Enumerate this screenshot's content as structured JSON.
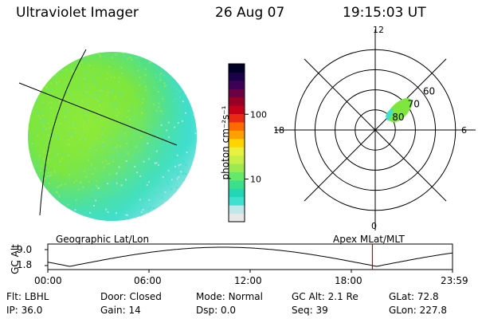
{
  "header": {
    "instrument": "Ultraviolet Imager",
    "date": "26 Aug 07",
    "time": "19:15:03 UT"
  },
  "colorbar": {
    "unit_label": "photon cm⁻²s⁻¹",
    "ticks": [
      {
        "label": "100",
        "value": 100
      },
      {
        "label": "10",
        "value": 10
      }
    ],
    "colors": [
      "#e8e8e8",
      "#bfe8ea",
      "#40e0d0",
      "#22d6b6",
      "#3ce08a",
      "#66e86a",
      "#9ee850",
      "#c8ee48",
      "#e8f040",
      "#ffd400",
      "#ffa000",
      "#ff6a00",
      "#e82a14",
      "#c40018",
      "#980028",
      "#6a0046",
      "#3c0054",
      "#1c0048",
      "#000028"
    ]
  },
  "polar": {
    "mlt_labels": [
      {
        "label": "12",
        "angle": 90
      },
      {
        "label": "6",
        "angle": 0
      },
      {
        "label": "18",
        "angle": 180
      },
      {
        "label": "0",
        "angle": 270
      }
    ],
    "lat_labels": [
      {
        "label": "60",
        "lat": 60
      },
      {
        "label": "70",
        "lat": 70
      },
      {
        "label": "80",
        "lat": 80
      }
    ]
  },
  "orbit": {
    "left_title": "Geographic Lat/Lon",
    "right_title": "Apex MLat/MLT",
    "axis_label": "GC Alt",
    "y_ticks": [
      "9.0",
      "1.8"
    ],
    "x_ticks": [
      "00:00",
      "06:00",
      "12:00",
      "18:00",
      "23:59"
    ],
    "current_time_hours": 19.25
  },
  "info": {
    "row1": [
      {
        "label": "Flt:",
        "value": "LBHL"
      },
      {
        "label": "Door:",
        "value": "Closed"
      },
      {
        "label": "Mode:",
        "value": "Normal"
      },
      {
        "label": "GC Alt:",
        "value": "2.1 Re"
      },
      {
        "label": "GLat:",
        "value": "72.8"
      }
    ],
    "row2": [
      {
        "label": "IP:",
        "value": "36.0"
      },
      {
        "label": "Gain:",
        "value": "14"
      },
      {
        "label": "Dsp:",
        "value": "0.0"
      },
      {
        "label": "Seq:",
        "value": "39"
      },
      {
        "label": "GLon:",
        "value": "227.8"
      }
    ]
  },
  "colors": {
    "disk_green": "#7ee83c",
    "disk_cyan": "#40e0d0",
    "marker_red": "#cc0000"
  }
}
